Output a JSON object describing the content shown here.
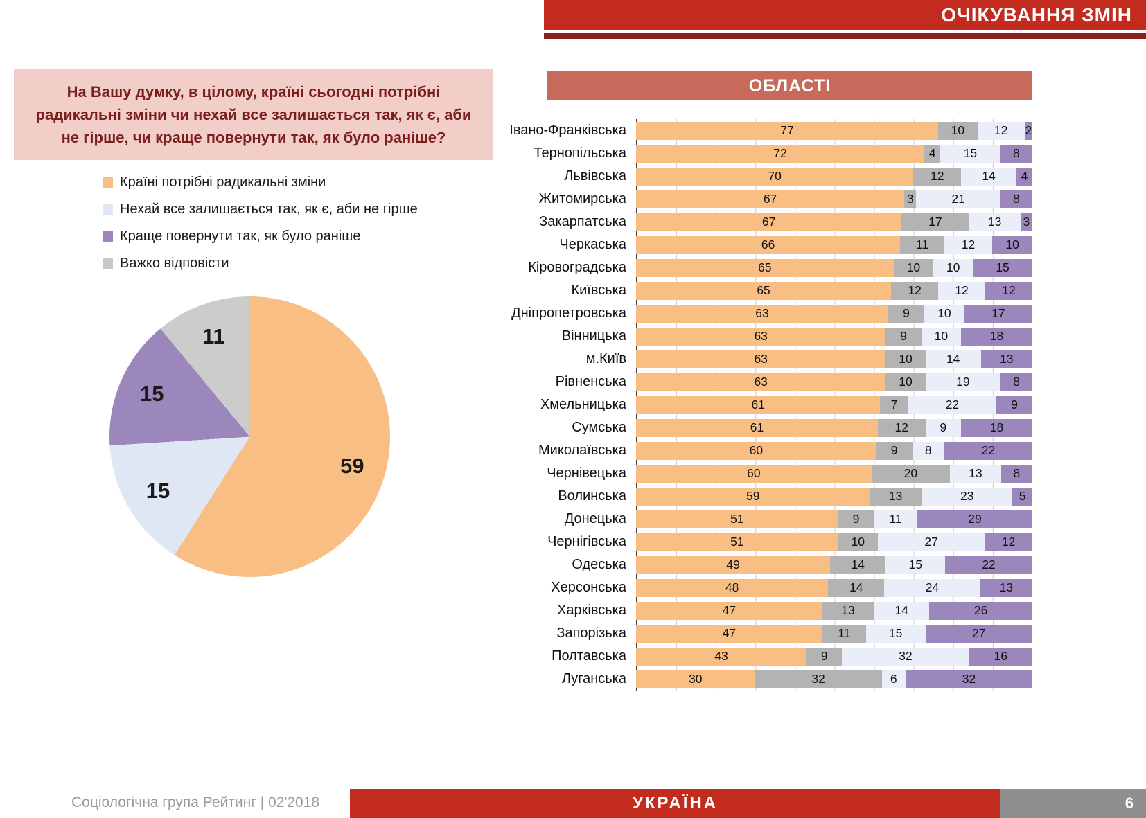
{
  "banner": {
    "title": "ОЧІКУВАННЯ ЗМІН"
  },
  "question": {
    "text": "На Вашу думку, в цілому, країні сьогодні потрібні радикальні зміни чи нехай все залишається так, як є, аби не гірше, чи краще повернути так, як було раніше?"
  },
  "legend": [
    {
      "label": "Країні потрібні радикальні зміни",
      "color": "#F8BE83"
    },
    {
      "label": "Нехай все залишається так, як є, аби не гірше",
      "color": "#DFE7F4"
    },
    {
      "label": "Краще повернути так, як було раніше",
      "color": "#9B87BB"
    },
    {
      "label": "Важко відповісти",
      "color": "#C9C9C9"
    }
  ],
  "colors": {
    "banner_red": "#C22B1D",
    "underline_dark_red": "#8A231B",
    "regions_header_salmon": "#C76A5C",
    "question_box_pink": "#F2CEC9",
    "question_text_dark_red": "#7A1E1E",
    "page_box_gray": "#8F8F8F"
  },
  "chart_data": [
    {
      "type": "pie",
      "title": "",
      "labels": [
        "Країні потрібні радикальні зміни",
        "Нехай все залишається так, як є, аби не гірше",
        "Краще повернути так, як було раніше",
        "Важко відповісти"
      ],
      "values": [
        59,
        15,
        15,
        11
      ],
      "colors": [
        "#F8BE83",
        "#DFE7F4",
        "#9B87BB",
        "#CCCCCC"
      ],
      "start_angle": "top",
      "direction": "clockwise"
    },
    {
      "type": "bar",
      "orientation": "horizontal-stacked",
      "title": "ОБЛАСТІ",
      "xlim": [
        0,
        100
      ],
      "categories": [
        "Івано-Франківська",
        "Тернопільська",
        "Львівська",
        "Житомирська",
        "Закарпатська",
        "Черкаська",
        "Кіровоградська",
        "Київська",
        "Дніпропетровська",
        "Вінницька",
        "м.Київ",
        "Рівненська",
        "Хмельницька",
        "Сумська",
        "Миколаївська",
        "Чернівецька",
        "Волинська",
        "Донецька",
        "Чернігівська",
        "Одеська",
        "Херсонська",
        "Харківська",
        "Запорізька",
        "Полтавська",
        "Луганська"
      ],
      "series": [
        {
          "key": "radical",
          "name": "Країні потрібні радикальні зміни",
          "color": "#F8BE83",
          "values": [
            77,
            72,
            70,
            67,
            67,
            66,
            65,
            65,
            63,
            63,
            63,
            63,
            61,
            61,
            60,
            60,
            59,
            51,
            51,
            49,
            48,
            47,
            47,
            43,
            30
          ]
        },
        {
          "key": "hard",
          "name": "Важко відповісти",
          "color": "#B3B3B3",
          "values": [
            10,
            4,
            12,
            3,
            17,
            11,
            10,
            12,
            9,
            9,
            10,
            10,
            7,
            12,
            9,
            20,
            13,
            9,
            10,
            14,
            14,
            13,
            11,
            9,
            32
          ]
        },
        {
          "key": "keep",
          "name": "Нехай все залишається так, як є, аби не гірше",
          "color": "#E9EEF8",
          "values": [
            12,
            15,
            14,
            21,
            13,
            12,
            10,
            12,
            10,
            10,
            14,
            19,
            22,
            9,
            8,
            13,
            23,
            11,
            27,
            15,
            24,
            14,
            15,
            32,
            6
          ]
        },
        {
          "key": "return",
          "name": "Краще повернути так, як було раніше",
          "color": "#9B87BB",
          "values": [
            2,
            8,
            4,
            8,
            3,
            10,
            15,
            12,
            17,
            18,
            13,
            8,
            9,
            18,
            22,
            8,
            5,
            29,
            12,
            22,
            13,
            26,
            27,
            16,
            32
          ]
        }
      ]
    }
  ],
  "footer": {
    "source": "Соціологічна група Рейтинг  |  02'2018",
    "country": "УКРАЇНА",
    "page": "6"
  }
}
